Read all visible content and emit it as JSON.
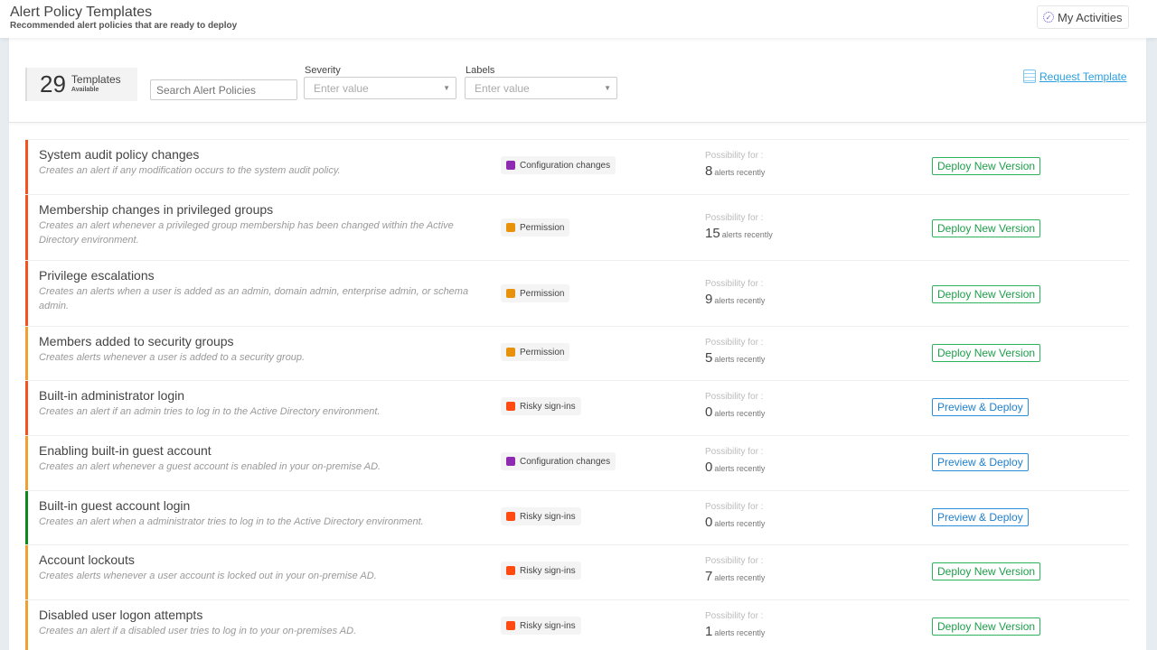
{
  "header": {
    "title": "Alert Policy Templates",
    "subtitle": "Recommended alert policies that are ready to deploy",
    "my_activities": "My Activities"
  },
  "filters": {
    "count": "29",
    "count_label": "Templates",
    "count_sub": "Available",
    "search_placeholder": "Search Alert Policies",
    "severity_label": "Severity",
    "severity_placeholder": "Enter value",
    "labels_label": "Labels",
    "labels_placeholder": "Enter value",
    "request_template": "Request Template"
  },
  "possibility_label": "Possibility for :",
  "alerts_suffix": "alerts recently",
  "rows": [
    {
      "title": "System audit policy changes",
      "desc": "Creates an alert if any modification occurs to the system audit policy.",
      "tag": "Configuration changes",
      "tag_color": "#8e2bb0",
      "severity_color": "#f4511e",
      "count": "8",
      "action": "Deploy New Version"
    },
    {
      "title": "Membership changes in privileged groups",
      "desc": "Creates an alert whenever a privileged group membership has been changed within the Active Directory environment.",
      "tag": "Permission",
      "tag_color": "#e8920c",
      "severity_color": "#f4511e",
      "count": "15",
      "action": "Deploy New Version"
    },
    {
      "title": "Privilege escalations",
      "desc": "Creates an alerts when a user is added as an admin, domain admin, enterprise admin, or schema admin.",
      "tag": "Permission",
      "tag_color": "#e8920c",
      "severity_color": "#f4511e",
      "count": "9",
      "action": "Deploy New Version"
    },
    {
      "title": "Members added to security groups",
      "desc": "Creates alerts whenever a user is added to a security group.",
      "tag": "Permission",
      "tag_color": "#e8920c",
      "severity_color": "#f0a030",
      "count": "5",
      "action": "Deploy New Version"
    },
    {
      "title": "Built-in administrator login",
      "desc": "Creates an alert if an admin tries to log in to the Active Directory environment.",
      "tag": "Risky sign-ins",
      "tag_color": "#ff4a12",
      "severity_color": "#f4511e",
      "count": "0",
      "action": "Preview & Deploy"
    },
    {
      "title": "Enabling built-in guest account",
      "desc": "Creates an alert whenever a guest account is enabled in your on-premise AD.",
      "tag": "Configuration changes",
      "tag_color": "#8e2bb0",
      "severity_color": "#f0a030",
      "count": "0",
      "action": "Preview & Deploy"
    },
    {
      "title": "Built-in guest account login",
      "desc": "Creates an alert when a administrator tries to log in to the Active Directory environment.",
      "tag": "Risky sign-ins",
      "tag_color": "#ff4a12",
      "severity_color": "#0a8a1a",
      "count": "0",
      "action": "Preview & Deploy"
    },
    {
      "title": "Account lockouts",
      "desc": "Creates alerts whenever a user account is locked out in your on-premise AD.",
      "tag": "Risky sign-ins",
      "tag_color": "#ff4a12",
      "severity_color": "#f0a030",
      "count": "7",
      "action": "Deploy New Version"
    },
    {
      "title": "Disabled user logon attempts",
      "desc": "Creates an alert if a disabled user tries to log in to your on-premises AD.",
      "tag": "Risky sign-ins",
      "tag_color": "#ff4a12",
      "severity_color": "#f0a030",
      "count": "1",
      "action": "Deploy New Version"
    }
  ]
}
